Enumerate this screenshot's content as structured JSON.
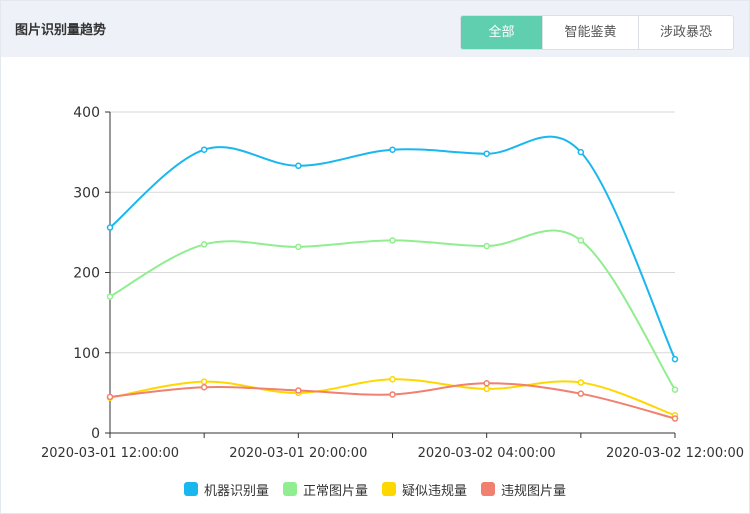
{
  "header": {
    "title": "图片识别量趋势",
    "accent_color": "#5fcfb0",
    "tabs": [
      {
        "label": "全部",
        "active": true
      },
      {
        "label": "智能鉴黄",
        "active": false
      },
      {
        "label": "涉政暴恐",
        "active": false
      }
    ]
  },
  "chart_data": {
    "type": "line",
    "smooth": true,
    "x": [
      "2020-03-01 12:00:00",
      "2020-03-01 16:00:00",
      "2020-03-01 20:00:00",
      "2020-03-02 00:00:00",
      "2020-03-02 04:00:00",
      "2020-03-02 08:00:00",
      "2020-03-02 12:00:00"
    ],
    "xtick_labels": [
      "2020-03-01 12:00:00",
      "2020-03-01 20:00:00",
      "2020-03-02 04:00:00",
      "2020-03-02 12:00:00"
    ],
    "ylim": [
      0,
      400
    ],
    "yticks": [
      0,
      100,
      200,
      300,
      400
    ],
    "grid": true,
    "legend_position": "bottom",
    "series": [
      {
        "name": "机器识别量",
        "color": "#1ab7ef",
        "values": [
          256,
          353,
          333,
          353,
          348,
          350,
          92
        ]
      },
      {
        "name": "正常图片量",
        "color": "#90ee90",
        "values": [
          170,
          235,
          232,
          240,
          233,
          240,
          54
        ]
      },
      {
        "name": "疑似违规量",
        "color": "#ffd700",
        "values": [
          44,
          64,
          50,
          67,
          55,
          63,
          22
        ]
      },
      {
        "name": "违规图片量",
        "color": "#f08070",
        "values": [
          45,
          57,
          53,
          48,
          62,
          49,
          18
        ]
      }
    ]
  }
}
